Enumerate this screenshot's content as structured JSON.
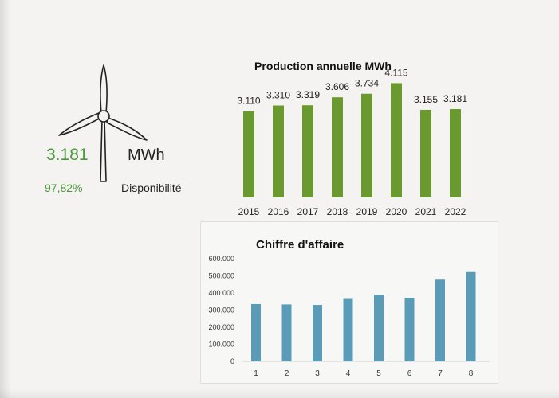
{
  "kpi": {
    "production_value": "3.181",
    "production_unit": "MWh",
    "availability_value": "97,82%",
    "availability_label": "Disponibilité"
  },
  "icons": {
    "turbine": "wind-turbine-icon"
  },
  "colors": {
    "production_bars": "#6a9a2f",
    "revenue_bars": "#5a9bb8",
    "kpi_text": "#4a9a3a"
  },
  "chart_data": [
    {
      "type": "bar",
      "title": "Production  annuelle MWh",
      "categories": [
        "2015",
        "2016",
        "2017",
        "2018",
        "2019",
        "2020",
        "2021",
        "2022"
      ],
      "values": [
        3110,
        3310,
        3319,
        3606,
        3734,
        4115,
        3155,
        3181
      ],
      "data_labels": [
        "3.110",
        "3.310",
        "3.319",
        "3.606",
        "3.734",
        "4.115",
        "3.155",
        "3.181"
      ],
      "ylim": [
        0,
        4300
      ],
      "grid": false,
      "xlabel": "",
      "ylabel": ""
    },
    {
      "type": "bar",
      "title": "Chiffre d'affaire",
      "categories": [
        "1",
        "2",
        "3",
        "4",
        "5",
        "6",
        "7",
        "8"
      ],
      "values": [
        335000,
        333000,
        330000,
        365000,
        390000,
        372000,
        478000,
        522000
      ],
      "yticks": [
        "0",
        "100.000",
        "200.000",
        "300.000",
        "400.000",
        "500.000",
        "600.000"
      ],
      "ylim": [
        0,
        600000
      ],
      "grid": false,
      "xlabel": "",
      "ylabel": ""
    }
  ]
}
